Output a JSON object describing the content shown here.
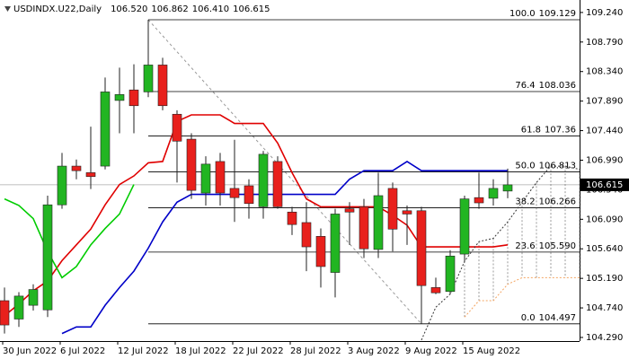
{
  "chart_data": {
    "type": "candlestick",
    "title": "USDINDX.U22,Daily",
    "header_values": [
      "106.520",
      "106.862",
      "106.410",
      "106.615"
    ],
    "categories": [
      "30 Jun 2022",
      null,
      null,
      null,
      "6 Jul 2022",
      null,
      null,
      null,
      "12 Jul 2022",
      null,
      null,
      null,
      "18 Jul 2022",
      null,
      null,
      null,
      "22 Jul 2022",
      null,
      null,
      null,
      "28 Jul 2022",
      null,
      null,
      null,
      "3 Aug 2022",
      null,
      null,
      null,
      "9 Aug 2022",
      null,
      null,
      null,
      "15 Aug 2022",
      null,
      null,
      null,
      null,
      null,
      null,
      null,
      null
    ],
    "open": [
      104.85,
      104.57,
      104.78,
      104.71,
      106.31,
      106.9,
      106.8,
      106.9,
      107.9,
      108.06,
      108.03,
      108.44,
      107.69,
      107.31,
      106.49,
      106.97,
      106.56,
      106.6,
      106.28,
      106.97,
      106.2,
      106.04,
      105.83,
      105.28,
      106.25,
      106.28,
      105.63,
      106.56,
      106.22,
      106.22,
      105.05,
      104.99,
      105.56,
      106.42,
      106.41,
      106.52,
      null,
      null,
      null,
      null,
      null
    ],
    "high": [
      105.05,
      104.98,
      105.1,
      106.45,
      107.1,
      107.0,
      107.5,
      108.25,
      108.4,
      108.45,
      109.129,
      108.55,
      107.75,
      107.4,
      107.05,
      107.1,
      107.3,
      106.7,
      107.13,
      107.05,
      106.28,
      106.35,
      105.95,
      106.25,
      106.35,
      106.4,
      106.8,
      106.65,
      106.3,
      106.28,
      105.2,
      105.62,
      106.45,
      106.8,
      106.7,
      106.862,
      null,
      null,
      null,
      null,
      null
    ],
    "low": [
      104.35,
      104.45,
      104.7,
      104.6,
      106.25,
      106.7,
      106.55,
      106.85,
      107.4,
      107.4,
      107.95,
      107.75,
      106.65,
      106.4,
      106.3,
      106.3,
      106.05,
      106.1,
      106.1,
      106.25,
      105.85,
      105.3,
      105.05,
      104.9,
      105.7,
      105.5,
      105.5,
      105.6,
      105.7,
      104.497,
      104.95,
      104.95,
      105.45,
      106.25,
      106.3,
      106.41,
      null,
      null,
      null,
      null,
      null
    ],
    "close": [
      104.48,
      104.92,
      105.02,
      106.31,
      106.9,
      106.83,
      106.74,
      108.03,
      107.99,
      107.82,
      108.44,
      107.82,
      107.28,
      106.53,
      106.93,
      106.49,
      106.42,
      106.33,
      107.08,
      106.28,
      106.01,
      105.67,
      105.37,
      106.17,
      106.2,
      105.64,
      106.45,
      105.94,
      106.17,
      105.08,
      104.97,
      105.53,
      106.4,
      106.34,
      106.56,
      106.615,
      null,
      null,
      null,
      null,
      null
    ],
    "up_color": "#22b522",
    "down_color": "#e8201c",
    "overlays": [
      {
        "color": "#e00000",
        "style": "solid",
        "values": [
          104.62,
          104.8,
          105.0,
          105.15,
          105.46,
          105.7,
          105.94,
          106.31,
          106.62,
          106.75,
          106.95,
          106.97,
          107.58,
          107.68,
          107.68,
          107.68,
          107.55,
          107.55,
          107.55,
          107.25,
          106.8,
          106.4,
          106.28,
          106.28,
          106.28,
          106.28,
          106.28,
          106.15,
          106.0,
          105.67,
          105.67,
          105.67,
          105.67,
          105.67,
          105.67,
          105.7,
          null,
          null,
          null,
          null,
          null
        ]
      },
      {
        "color": "#0000c8",
        "style": "solid",
        "values": [
          null,
          null,
          null,
          null,
          104.35,
          104.45,
          104.45,
          104.78,
          105.05,
          105.3,
          105.65,
          106.05,
          106.35,
          106.47,
          106.47,
          106.47,
          106.47,
          106.47,
          106.47,
          106.47,
          106.47,
          106.47,
          106.47,
          106.47,
          106.7,
          106.83,
          106.83,
          106.83,
          106.97,
          106.83,
          106.83,
          106.83,
          106.83,
          106.83,
          106.83,
          106.83,
          null,
          null,
          null,
          null,
          null
        ]
      },
      {
        "color": "#00cc00",
        "style": "solid",
        "values": [
          106.4,
          106.3,
          106.1,
          105.6,
          105.2,
          105.37,
          105.7,
          105.95,
          106.17,
          106.62,
          null,
          null,
          null,
          null,
          null,
          null,
          null,
          null,
          null,
          null,
          null,
          null,
          null,
          null,
          null,
          null,
          null,
          null,
          null,
          null,
          null,
          null,
          null,
          null,
          null,
          null,
          null,
          null,
          null,
          null,
          null
        ]
      },
      {
        "color": "#333333",
        "style": "dotted",
        "values": [
          null,
          null,
          null,
          null,
          null,
          null,
          null,
          null,
          null,
          null,
          null,
          null,
          null,
          null,
          null,
          null,
          null,
          null,
          null,
          null,
          null,
          null,
          null,
          null,
          null,
          null,
          null,
          null,
          null,
          104.25,
          104.75,
          104.95,
          105.45,
          105.75,
          105.8,
          106.05,
          106.35,
          106.65,
          106.9,
          106.9,
          106.85
        ]
      },
      {
        "color": "#f4a460",
        "style": "dotted",
        "values": [
          null,
          null,
          null,
          null,
          null,
          null,
          null,
          null,
          null,
          null,
          null,
          null,
          null,
          null,
          null,
          null,
          null,
          null,
          null,
          null,
          null,
          null,
          null,
          null,
          null,
          null,
          null,
          null,
          null,
          null,
          null,
          null,
          104.6,
          104.85,
          104.85,
          105.1,
          105.2,
          105.2,
          105.2,
          105.2,
          105.2
        ]
      }
    ],
    "cloud": [
      3,
      4
    ],
    "fib": [
      {
        "ratio": "100.0",
        "price": 109.129
      },
      {
        "ratio": "76.4",
        "price": 108.036
      },
      {
        "ratio": "61.8",
        "price": 107.36
      },
      {
        "ratio": "50.0",
        "price": 106.813
      },
      {
        "ratio": "38.2",
        "price": 106.266
      },
      {
        "ratio": "23.6",
        "price": {
          "value": 105.59,
          "label": "105.590"
        }
      },
      {
        "ratio": "0.0",
        "price": 104.497
      }
    ],
    "last_price": {
      "value": 106.615,
      "label": "106.615"
    },
    "ylim": [
      104.235,
      109.43
    ],
    "yticks": [
      {
        "value": 109.24,
        "label": "109.240"
      },
      {
        "value": 108.79,
        "label": "108.790"
      },
      {
        "value": 108.34,
        "label": "108.340"
      },
      {
        "value": 107.89,
        "label": "107.890"
      },
      {
        "value": 107.44,
        "label": "107.440"
      },
      {
        "value": 106.99,
        "label": "106.990"
      },
      {
        "value": 106.54,
        "label": "106.540"
      },
      {
        "value": 106.09,
        "label": "106.090"
      },
      {
        "value": 105.64,
        "label": "105.640"
      },
      {
        "value": 105.19,
        "label": "105.190"
      },
      {
        "value": 104.74,
        "label": "104.740"
      },
      {
        "value": 104.29,
        "label": "104.290"
      }
    ]
  }
}
